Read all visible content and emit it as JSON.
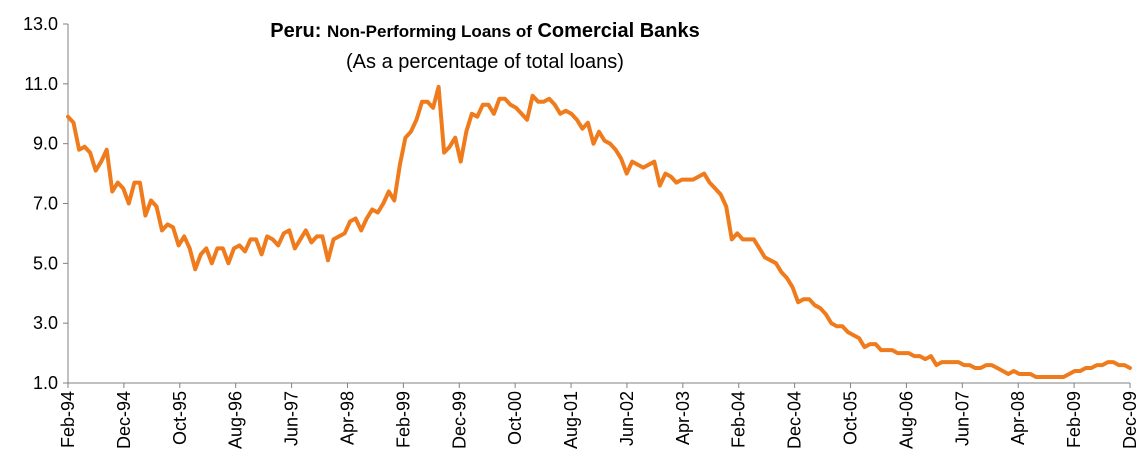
{
  "chart_data": {
    "type": "line",
    "title_country": "Peru:",
    "title_part1": "Non-Performing Loans of",
    "title_part2": "Comercial Banks",
    "subtitle": "(As a percentage of total loans)",
    "xlabel": "",
    "ylabel": "",
    "ylim": [
      1.0,
      13.0
    ],
    "yticks": [
      "1.0",
      "3.0",
      "5.0",
      "7.0",
      "9.0",
      "11.0",
      "13.0"
    ],
    "xticks": [
      "Feb-94",
      "Dec-94",
      "Oct-95",
      "Aug-96",
      "Jun-97",
      "Apr-98",
      "Feb-99",
      "Dec-99",
      "Oct-00",
      "Aug-01",
      "Jun-02",
      "Apr-03",
      "Feb-04",
      "Dec-04",
      "Oct-05",
      "Aug-06",
      "Jun-07",
      "Apr-08",
      "Feb-09",
      "Dec-09"
    ],
    "x_start": "Feb-94",
    "x_end": "Dec-09",
    "grid": false,
    "legend": "none",
    "series": [
      {
        "color": "#f07b1c",
        "values": [
          9.9,
          9.7,
          8.8,
          8.9,
          8.7,
          8.1,
          8.4,
          8.8,
          7.4,
          7.7,
          7.5,
          7.0,
          7.7,
          7.7,
          6.6,
          7.1,
          6.9,
          6.1,
          6.3,
          6.2,
          5.6,
          5.9,
          5.5,
          4.8,
          5.3,
          5.5,
          5.0,
          5.5,
          5.5,
          5.0,
          5.5,
          5.6,
          5.4,
          5.8,
          5.8,
          5.3,
          5.9,
          5.8,
          5.6,
          6.0,
          6.1,
          5.5,
          5.8,
          6.1,
          5.7,
          5.9,
          5.9,
          5.1,
          5.8,
          5.9,
          6.0,
          6.4,
          6.5,
          6.1,
          6.5,
          6.8,
          6.7,
          7.0,
          7.4,
          7.1,
          8.3,
          9.2,
          9.4,
          9.8,
          10.4,
          10.4,
          10.2,
          10.9,
          8.7,
          8.9,
          9.2,
          8.4,
          9.4,
          10.0,
          9.9,
          10.3,
          10.3,
          10.0,
          10.5,
          10.5,
          10.3,
          10.2,
          10.0,
          9.8,
          10.6,
          10.4,
          10.4,
          10.5,
          10.3,
          10.0,
          10.1,
          10.0,
          9.8,
          9.5,
          9.7,
          9.0,
          9.4,
          9.1,
          9.0,
          8.8,
          8.5,
          8.0,
          8.4,
          8.3,
          8.2,
          8.3,
          8.4,
          7.6,
          8.0,
          7.9,
          7.7,
          7.8,
          7.8,
          7.8,
          7.9,
          8.0,
          7.7,
          7.5,
          7.3,
          6.9,
          5.8,
          6.0,
          5.8,
          5.8,
          5.8,
          5.5,
          5.2,
          5.1,
          5.0,
          4.7,
          4.5,
          4.2,
          3.7,
          3.8,
          3.8,
          3.6,
          3.5,
          3.3,
          3.0,
          2.9,
          2.9,
          2.7,
          2.6,
          2.5,
          2.2,
          2.3,
          2.3,
          2.1,
          2.1,
          2.1,
          2.0,
          2.0,
          2.0,
          1.9,
          1.9,
          1.8,
          1.9,
          1.6,
          1.7,
          1.7,
          1.7,
          1.7,
          1.6,
          1.6,
          1.5,
          1.5,
          1.6,
          1.6,
          1.5,
          1.4,
          1.3,
          1.4,
          1.3,
          1.3,
          1.3,
          1.2,
          1.2,
          1.2,
          1.2,
          1.2,
          1.2,
          1.3,
          1.4,
          1.4,
          1.5,
          1.5,
          1.6,
          1.6,
          1.7,
          1.7,
          1.6,
          1.6,
          1.5
        ]
      }
    ]
  }
}
